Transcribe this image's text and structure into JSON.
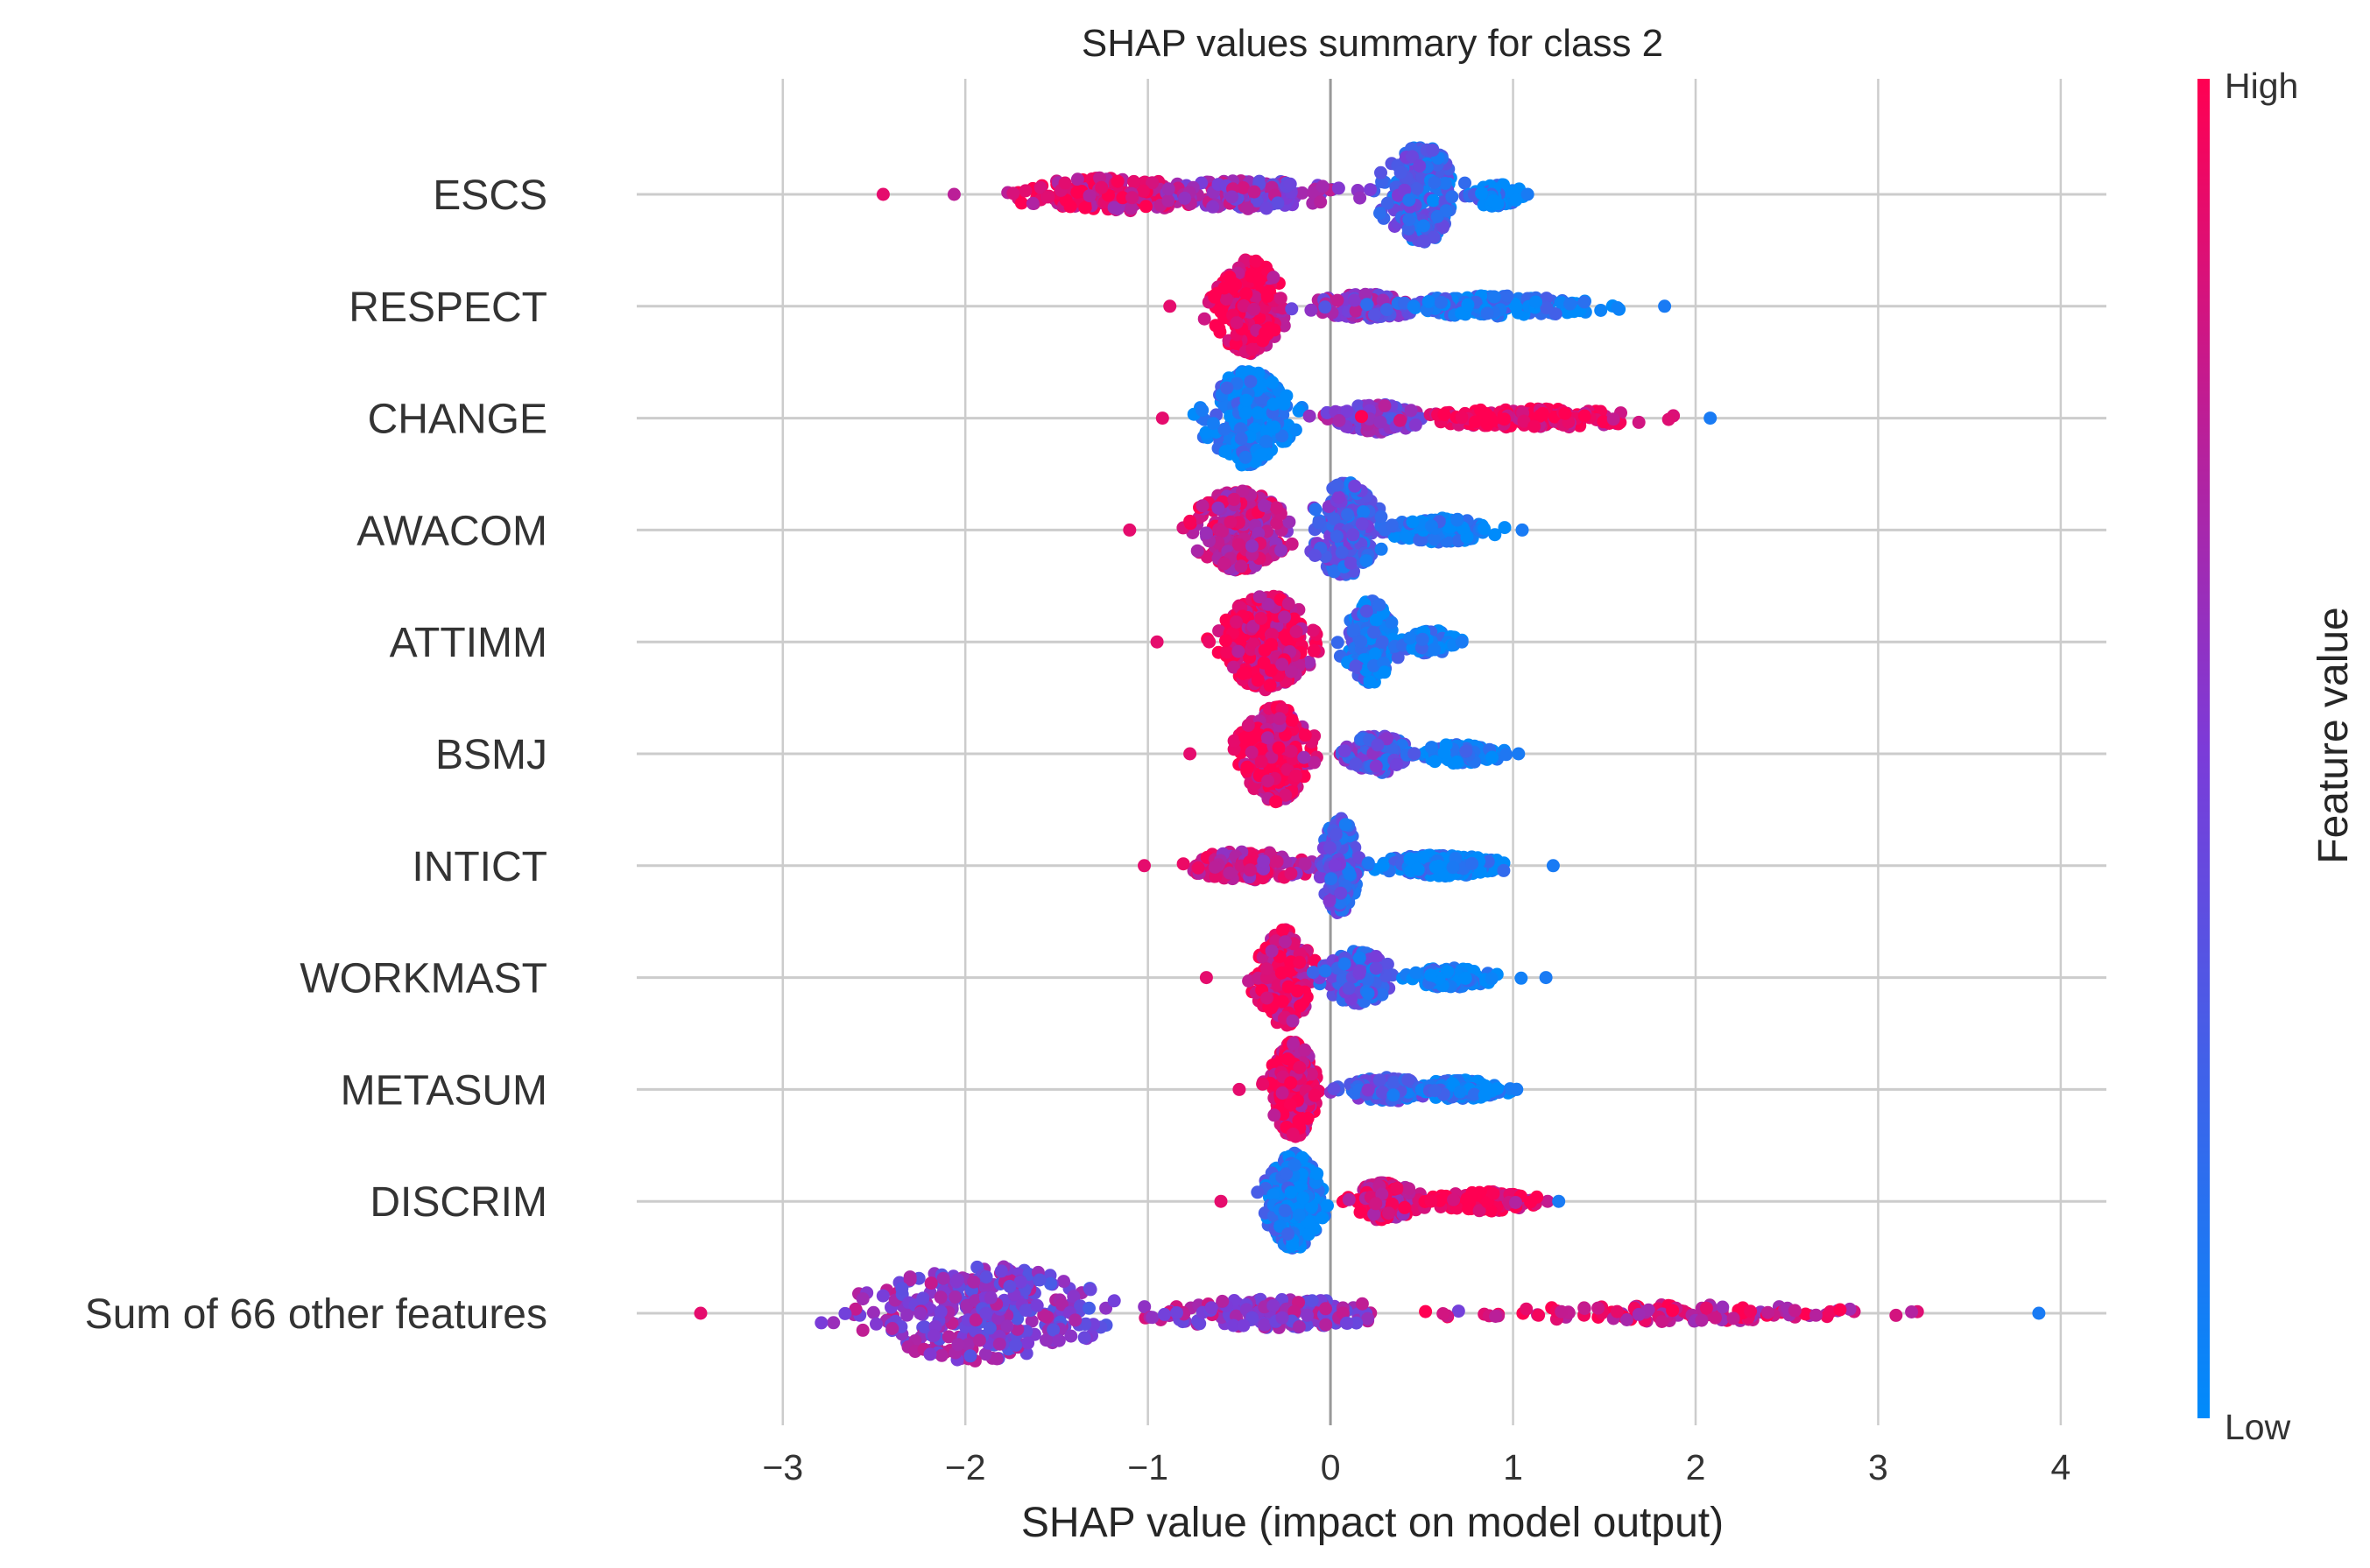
{
  "chart_data": {
    "type": "scatter",
    "subtype": "shap-beeswarm",
    "title": "SHAP values summary for class 2",
    "xlabel": "SHAP value (impact on model output)",
    "xlim": [
      -3.8,
      4.25
    ],
    "xticks": [
      -3,
      -2,
      -1,
      0,
      1,
      2,
      3,
      4
    ],
    "xtick_labels": [
      "−3",
      "−2",
      "−1",
      "0",
      "1",
      "2",
      "3",
      "4"
    ],
    "colorbar": {
      "label": "Feature value",
      "high": "High",
      "low": "Low",
      "low_color": "#008bfb",
      "high_color": "#ff0052"
    },
    "grid": true,
    "features": [
      {
        "name": "ESCS",
        "min": -2.45,
        "max": 1.08,
        "clusters": [
          {
            "center": -1.2,
            "spread": 0.45,
            "weight": 0.3,
            "height": 0.35,
            "color": 0.85
          },
          {
            "center": -0.45,
            "spread": 0.4,
            "weight": 0.25,
            "height": 0.3,
            "color": 0.6
          },
          {
            "center": 0.5,
            "spread": 0.18,
            "weight": 0.35,
            "height": 1.0,
            "color": 0.25
          },
          {
            "center": 0.9,
            "spread": 0.12,
            "weight": 0.1,
            "height": 0.25,
            "color": 0.05
          }
        ]
      },
      {
        "name": "RESPECT",
        "min": -0.88,
        "max": 1.83,
        "clusters": [
          {
            "center": -0.45,
            "spread": 0.15,
            "weight": 0.5,
            "height": 1.0,
            "color": 0.95
          },
          {
            "center": 0.2,
            "spread": 0.25,
            "weight": 0.2,
            "height": 0.25,
            "color": 0.55
          },
          {
            "center": 0.9,
            "spread": 0.45,
            "weight": 0.3,
            "height": 0.22,
            "color": 0.1
          }
        ]
      },
      {
        "name": "CHANGE",
        "min": -0.92,
        "max": 2.08,
        "clusters": [
          {
            "center": -0.45,
            "spread": 0.18,
            "weight": 0.5,
            "height": 1.0,
            "color": 0.05
          },
          {
            "center": 0.25,
            "spread": 0.2,
            "weight": 0.2,
            "height": 0.3,
            "color": 0.55
          },
          {
            "center": 1.1,
            "spread": 0.5,
            "weight": 0.3,
            "height": 0.2,
            "color": 0.95
          }
        ]
      },
      {
        "name": "AWACOM",
        "min": -1.1,
        "max": 1.05,
        "clusters": [
          {
            "center": -0.5,
            "spread": 0.2,
            "weight": 0.45,
            "height": 0.85,
            "color": 0.78
          },
          {
            "center": 0.08,
            "spread": 0.15,
            "weight": 0.35,
            "height": 1.0,
            "color": 0.3
          },
          {
            "center": 0.6,
            "spread": 0.25,
            "weight": 0.2,
            "height": 0.25,
            "color": 0.05
          }
        ]
      },
      {
        "name": "ATTIMM",
        "min": -0.95,
        "max": 0.72,
        "clusters": [
          {
            "center": -0.35,
            "spread": 0.2,
            "weight": 0.55,
            "height": 1.0,
            "color": 0.9
          },
          {
            "center": 0.22,
            "spread": 0.12,
            "weight": 0.35,
            "height": 0.85,
            "color": 0.15
          },
          {
            "center": 0.55,
            "spread": 0.1,
            "weight": 0.1,
            "height": 0.25,
            "color": 0.05
          }
        ]
      },
      {
        "name": "BSMJ",
        "min": -0.77,
        "max": 1.03,
        "clusters": [
          {
            "center": -0.3,
            "spread": 0.15,
            "weight": 0.55,
            "height": 1.0,
            "color": 0.9
          },
          {
            "center": 0.25,
            "spread": 0.15,
            "weight": 0.25,
            "height": 0.4,
            "color": 0.35
          },
          {
            "center": 0.7,
            "spread": 0.2,
            "weight": 0.2,
            "height": 0.2,
            "color": 0.05
          }
        ]
      },
      {
        "name": "INTICT",
        "min": -1.02,
        "max": 1.22,
        "clusters": [
          {
            "center": -0.45,
            "spread": 0.3,
            "weight": 0.25,
            "height": 0.3,
            "color": 0.75
          },
          {
            "center": 0.05,
            "spread": 0.08,
            "weight": 0.35,
            "height": 1.0,
            "color": 0.3
          },
          {
            "center": 0.6,
            "spread": 0.3,
            "weight": 0.4,
            "height": 0.22,
            "color": 0.05
          }
        ]
      },
      {
        "name": "WORKMAST",
        "min": -0.68,
        "max": 1.18,
        "clusters": [
          {
            "center": -0.25,
            "spread": 0.12,
            "weight": 0.5,
            "height": 1.0,
            "color": 0.88
          },
          {
            "center": 0.15,
            "spread": 0.15,
            "weight": 0.3,
            "height": 0.55,
            "color": 0.3
          },
          {
            "center": 0.65,
            "spread": 0.2,
            "weight": 0.2,
            "height": 0.2,
            "color": 0.05
          }
        ]
      },
      {
        "name": "METASUM",
        "min": -0.5,
        "max": 1.02,
        "clusters": [
          {
            "center": -0.2,
            "spread": 0.1,
            "weight": 0.55,
            "height": 1.0,
            "color": 0.9
          },
          {
            "center": 0.3,
            "spread": 0.2,
            "weight": 0.2,
            "height": 0.25,
            "color": 0.3
          },
          {
            "center": 0.7,
            "spread": 0.2,
            "weight": 0.25,
            "height": 0.2,
            "color": 0.05
          }
        ]
      },
      {
        "name": "DISCRIM",
        "min": -0.6,
        "max": 1.25,
        "clusters": [
          {
            "center": -0.2,
            "spread": 0.12,
            "weight": 0.55,
            "height": 1.0,
            "color": 0.08
          },
          {
            "center": 0.3,
            "spread": 0.15,
            "weight": 0.25,
            "height": 0.4,
            "color": 0.85
          },
          {
            "center": 0.85,
            "spread": 0.25,
            "weight": 0.2,
            "height": 0.2,
            "color": 0.95
          }
        ]
      },
      {
        "name": "Sum of 66 other features",
        "min": -3.45,
        "max": 3.88,
        "clusters": [
          {
            "center": -1.9,
            "spread": 0.55,
            "weight": 0.55,
            "height": 1.0,
            "color": 0.55
          },
          {
            "center": -0.3,
            "spread": 0.6,
            "weight": 0.25,
            "height": 0.3,
            "color": 0.6
          },
          {
            "center": 1.8,
            "spread": 0.9,
            "weight": 0.2,
            "height": 0.18,
            "color": 0.85
          }
        ]
      }
    ]
  }
}
